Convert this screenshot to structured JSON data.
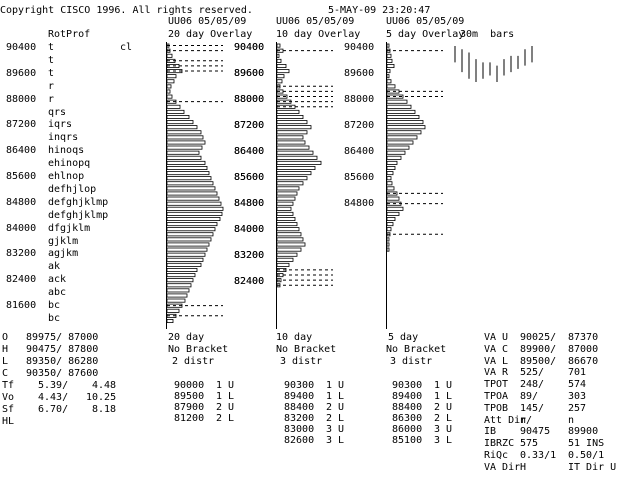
{
  "header": {
    "copyright": "Copyright CISCO 1996. All rights reserved.",
    "datetime": "5-MAY-09 23:20:47"
  },
  "rotprof": {
    "title": "RotProf",
    "extra": "cl",
    "rows": [
      {
        "price": "90400",
        "letters": "t"
      },
      {
        "price": "",
        "letters": "t"
      },
      {
        "price": "89600",
        "letters": "t"
      },
      {
        "price": "",
        "letters": "r"
      },
      {
        "price": "88000",
        "letters": "r"
      },
      {
        "price": "",
        "letters": "qrs"
      },
      {
        "price": "87200",
        "letters": "iqrs"
      },
      {
        "price": "",
        "letters": "inqrs"
      },
      {
        "price": "86400",
        "letters": "hinoqs"
      },
      {
        "price": "",
        "letters": "ehinopq"
      },
      {
        "price": "85600",
        "letters": "ehlnop"
      },
      {
        "price": "",
        "letters": "defhjlop"
      },
      {
        "price": "84800",
        "letters": "defghjklmp"
      },
      {
        "price": "",
        "letters": "defghjklmp"
      },
      {
        "price": "84000",
        "letters": "dfgjklm"
      },
      {
        "price": "",
        "letters": "gjklm"
      },
      {
        "price": "83200",
        "letters": "agjkm"
      },
      {
        "price": "",
        "letters": "ak"
      },
      {
        "price": "82400",
        "letters": "ack"
      },
      {
        "price": "",
        "letters": "abc"
      },
      {
        "price": "81600",
        "letters": "bc"
      },
      {
        "price": "",
        "letters": "bc"
      }
    ]
  },
  "overlays": [
    {
      "title_line1": "UU06 05/05/09",
      "title_line2": "20 day Overlay",
      "axis_labels": [
        "90400",
        "89600",
        "88000",
        "87200",
        "86400",
        "85600",
        "84800",
        "84000",
        "83200",
        "82400"
      ],
      "bar_lengths": [
        2,
        3,
        5,
        8,
        12,
        15,
        9,
        7,
        4,
        3,
        5,
        9,
        13,
        17,
        22,
        26,
        30,
        34,
        36,
        38,
        35,
        32,
        34,
        38,
        40,
        42,
        44,
        46,
        48,
        50,
        52,
        54,
        56,
        55,
        53,
        50,
        48,
        46,
        44,
        42,
        40,
        38,
        36,
        34,
        30,
        28,
        26,
        24,
        22,
        20,
        18,
        15,
        12,
        9,
        6
      ],
      "dashed_rows": [
        0,
        1,
        3,
        4,
        5,
        11,
        51,
        53
      ],
      "footer": [
        "20 day",
        "No Bracket",
        "2 distr"
      ],
      "levels": [
        {
          "price": "90000",
          "count": "1",
          "side": "U"
        },
        {
          "price": "89500",
          "count": "1",
          "side": "L"
        },
        {
          "price": "87900",
          "count": "2",
          "side": "U"
        },
        {
          "price": "81200",
          "count": "2",
          "side": "L"
        }
      ]
    },
    {
      "title_line1": "UU06 05/05/09",
      "title_line2": "10 day Overlay",
      "axis_labels": [
        "90400",
        "89600",
        "88000",
        "87200",
        "86400",
        "85600",
        "84800",
        "84000",
        "83200",
        "82400"
      ],
      "bar_lengths": [
        3,
        6,
        2,
        4,
        9,
        12,
        7,
        5,
        3,
        6,
        10,
        14,
        18,
        22,
        26,
        30,
        34,
        30,
        26,
        28,
        32,
        36,
        40,
        44,
        38,
        34,
        30,
        26,
        22,
        20,
        18,
        16,
        14,
        16,
        18,
        20,
        22,
        24,
        26,
        28,
        24,
        20,
        16,
        12,
        9,
        6,
        4,
        3
      ],
      "dashed_rows": [
        1,
        8,
        9,
        10,
        11,
        12,
        44,
        45,
        46,
        47
      ],
      "footer": [
        "10 day",
        "No Bracket",
        "3 distr"
      ],
      "levels": [
        {
          "price": "90300",
          "count": "1",
          "side": "U"
        },
        {
          "price": "89400",
          "count": "1",
          "side": "L"
        },
        {
          "price": "88400",
          "count": "2",
          "side": "U"
        },
        {
          "price": "83200",
          "count": "2",
          "side": "L"
        },
        {
          "price": "83000",
          "count": "3",
          "side": "U"
        },
        {
          "price": "82600",
          "count": "3",
          "side": "L"
        }
      ]
    },
    {
      "title_line1": "UU06 05/05/09",
      "title_line2": "5 day Overlay",
      "axis_labels": [
        "90400",
        "89600",
        "88000",
        "87200",
        "86400",
        "85600",
        "84800"
      ],
      "bar_lengths": [
        2,
        3,
        4,
        5,
        7,
        3,
        2,
        4,
        8,
        12,
        16,
        20,
        24,
        28,
        32,
        36,
        38,
        34,
        30,
        26,
        22,
        18,
        14,
        10,
        8,
        6,
        4,
        5,
        7,
        10,
        12,
        14,
        16,
        12,
        8,
        6,
        4,
        3,
        2,
        2,
        2
      ],
      "dashed_rows": [
        1,
        9,
        10,
        29,
        31,
        37
      ],
      "footer": [
        "5 day",
        "No Bracket",
        "3 distr"
      ],
      "levels": [
        {
          "price": "90300",
          "count": "1",
          "side": "U"
        },
        {
          "price": "89400",
          "count": "1",
          "side": "L"
        },
        {
          "price": "88400",
          "count": "2",
          "side": "U"
        },
        {
          "price": "86300",
          "count": "2",
          "side": "L"
        },
        {
          "price": "86000",
          "count": "3",
          "side": "U"
        },
        {
          "price": "85100",
          "count": "3",
          "side": "L"
        }
      ]
    }
  ],
  "thirty_min": {
    "title": "30m  bars",
    "bars": [
      {
        "top": 90400,
        "bottom": 89900
      },
      {
        "top": 90300,
        "bottom": 89600
      },
      {
        "top": 90200,
        "bottom": 89400
      },
      {
        "top": 90000,
        "bottom": 89300
      },
      {
        "top": 89900,
        "bottom": 89400
      },
      {
        "top": 89900,
        "bottom": 89500
      },
      {
        "top": 89800,
        "bottom": 89300
      },
      {
        "top": 90000,
        "bottom": 89500
      },
      {
        "top": 90100,
        "bottom": 89600
      },
      {
        "top": 90100,
        "bottom": 89700
      },
      {
        "top": 90300,
        "bottom": 89800
      },
      {
        "top": 90400,
        "bottom": 89900
      }
    ]
  },
  "stats": {
    "rows": [
      {
        "label": "O",
        "value": "89975/ 87000"
      },
      {
        "label": "H",
        "value": "90475/ 87800"
      },
      {
        "label": "L",
        "value": "89350/ 86280"
      },
      {
        "label": "C",
        "value": "90350/ 87600"
      }
    ],
    "extra": [
      {
        "label": "Tf",
        "a": "5.39/",
        "b": "4.48"
      },
      {
        "label": "Vo",
        "a": "4.43/",
        "b": "10.25"
      },
      {
        "label": "Sf",
        "a": "6.70/",
        "b": "8.18"
      },
      {
        "label": "HL",
        "a": "",
        "b": ""
      }
    ]
  },
  "value_area": [
    {
      "label": "VA U",
      "v1": "90025/",
      "v2": "87370"
    },
    {
      "label": "VA C",
      "v1": "89900/",
      "v2": "87000"
    },
    {
      "label": "VA L",
      "v1": "89500/",
      "v2": "86670"
    },
    {
      "label": "VA R",
      "v1": "525/",
      "v2": "701"
    },
    {
      "label": "TPOT",
      "v1": "248/",
      "v2": "574"
    },
    {
      "label": "TPOA",
      "v1": "89/",
      "v2": "303"
    },
    {
      "label": "TPOB",
      "v1": "145/",
      "v2": "257"
    },
    {
      "label": "Att Dir",
      "v1": "n/",
      "v2": "n"
    },
    {
      "label": "IB",
      "v1": "90475",
      "v2": "89900"
    },
    {
      "label": "IBRZC",
      "v1": "575",
      "v2": "51 INS"
    },
    {
      "label": "RiQc",
      "v1": "0.33/1",
      "v2": "0.50/1"
    },
    {
      "label": "VA Dir",
      "v1": "H",
      "v2": "IT Dir U"
    }
  ]
}
